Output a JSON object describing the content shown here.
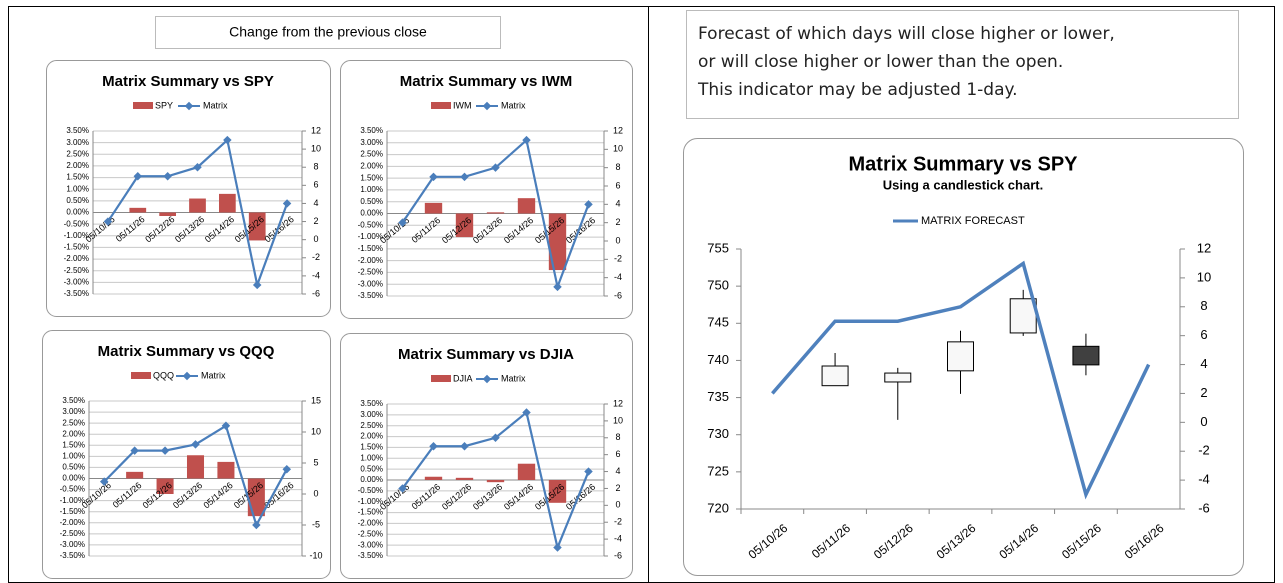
{
  "header": {
    "left_caption": "Change from the previous close",
    "right_note": [
      "Forecast of which days will close higher or lower,",
      "or will close higher or lower than the open.",
      "This indicator may be adjusted 1-day."
    ]
  },
  "chart_data": [
    {
      "type": "bar",
      "title": "Matrix Summary vs SPY",
      "categories": [
        "05/10/26",
        "05/11/26",
        "05/12/26",
        "05/13/26",
        "05/14/26",
        "05/15/26",
        "05/16/26"
      ],
      "series": [
        {
          "name": "SPY",
          "color": "#c0504d",
          "values": [
            null,
            0.2,
            -0.15,
            0.6,
            0.8,
            -1.2,
            null
          ]
        },
        {
          "name": "Matrix",
          "color": "#4a7ebb",
          "values": [
            2,
            7,
            7,
            8,
            11,
            -5,
            4
          ],
          "axis": "y2"
        }
      ],
      "ylim": [
        -3.5,
        3.5
      ],
      "yticks": [
        {
          "value": -3.5,
          "label": "-3.50%"
        },
        {
          "value": -3,
          "label": "-3.00%"
        },
        {
          "value": -2.5,
          "label": "-2.50%"
        },
        {
          "value": -2,
          "label": "-2.00%"
        },
        {
          "value": -1.5,
          "label": "-1.50%"
        },
        {
          "value": -1,
          "label": "-1.00%"
        },
        {
          "value": -0.5,
          "label": "-0.50%"
        },
        {
          "value": 0,
          "label": "0.00%"
        },
        {
          "value": 0.5,
          "label": "0.50%"
        },
        {
          "value": 1,
          "label": "1.00%"
        },
        {
          "value": 1.5,
          "label": "1.50%"
        },
        {
          "value": 2,
          "label": "2.00%"
        },
        {
          "value": 2.5,
          "label": "2.50%"
        },
        {
          "value": 3,
          "label": "3.00%"
        },
        {
          "value": 3.5,
          "label": "3.50%"
        }
      ],
      "y2lim": [
        -6,
        12
      ],
      "y2ticks": [
        -6,
        -4,
        -2,
        0,
        2,
        4,
        6,
        8,
        10,
        12
      ],
      "grid": true
    },
    {
      "type": "bar",
      "title": "Matrix Summary vs IWM",
      "categories": [
        "05/10/26",
        "05/11/26",
        "05/12/26",
        "05/13/26",
        "05/14/26",
        "05/15/26",
        "05/16/26"
      ],
      "series": [
        {
          "name": "IWM",
          "color": "#c0504d",
          "values": [
            null,
            0.45,
            -1.0,
            0.05,
            0.65,
            -2.4,
            null
          ]
        },
        {
          "name": "Matrix",
          "color": "#4a7ebb",
          "values": [
            2,
            7,
            7,
            8,
            11,
            -5,
            4
          ],
          "axis": "y2"
        }
      ],
      "ylim": [
        -3.5,
        3.5
      ],
      "yticks": [
        {
          "value": -3.5,
          "label": "-3.50%"
        },
        {
          "value": -3,
          "label": "-3.00%"
        },
        {
          "value": -2.5,
          "label": "-2.50%"
        },
        {
          "value": -2,
          "label": "-2.00%"
        },
        {
          "value": -1.5,
          "label": "-1.50%"
        },
        {
          "value": -1,
          "label": "-1.00%"
        },
        {
          "value": -0.5,
          "label": "-0.50%"
        },
        {
          "value": 0,
          "label": "0.00%"
        },
        {
          "value": 0.5,
          "label": "0.50%"
        },
        {
          "value": 1,
          "label": "1.00%"
        },
        {
          "value": 1.5,
          "label": "1.50%"
        },
        {
          "value": 2,
          "label": "2.00%"
        },
        {
          "value": 2.5,
          "label": "2.50%"
        },
        {
          "value": 3,
          "label": "3.00%"
        },
        {
          "value": 3.5,
          "label": "3.50%"
        }
      ],
      "y2lim": [
        -6,
        12
      ],
      "y2ticks": [
        -6,
        -4,
        -2,
        0,
        2,
        4,
        6,
        8,
        10,
        12
      ],
      "grid": true
    },
    {
      "type": "bar",
      "title": "Matrix Summary vs QQQ",
      "categories": [
        "05/10/26",
        "05/11/26",
        "05/12/26",
        "05/13/26",
        "05/14/26",
        "05/15/26",
        "05/16/26"
      ],
      "series": [
        {
          "name": "QQQ",
          "color": "#c0504d",
          "values": [
            null,
            0.3,
            -0.7,
            1.05,
            0.75,
            -1.7,
            null
          ]
        },
        {
          "name": "Matrix",
          "color": "#4a7ebb",
          "values": [
            2,
            7,
            7,
            8,
            11,
            -5,
            4
          ],
          "axis": "y2"
        }
      ],
      "ylim": [
        -3.5,
        3.5
      ],
      "yticks": [
        {
          "value": -3.5,
          "label": "-3.50%"
        },
        {
          "value": -3,
          "label": "-3.00%"
        },
        {
          "value": -2.5,
          "label": "-2.50%"
        },
        {
          "value": -2,
          "label": "-2.00%"
        },
        {
          "value": -1.5,
          "label": "-1.50%"
        },
        {
          "value": -1,
          "label": "-1.00%"
        },
        {
          "value": -0.5,
          "label": "-0.50%"
        },
        {
          "value": 0,
          "label": "0.00%"
        },
        {
          "value": 0.5,
          "label": "0.50%"
        },
        {
          "value": 1,
          "label": "1.00%"
        },
        {
          "value": 1.5,
          "label": "1.50%"
        },
        {
          "value": 2,
          "label": "2.00%"
        },
        {
          "value": 2.5,
          "label": "2.50%"
        },
        {
          "value": 3,
          "label": "3.00%"
        },
        {
          "value": 3.5,
          "label": "3.50%"
        }
      ],
      "y2lim": [
        -10,
        15
      ],
      "y2ticks": [
        -10,
        -5,
        0,
        5,
        10,
        15
      ],
      "grid": true
    },
    {
      "type": "bar",
      "title": "Matrix Summary vs DJIA",
      "categories": [
        "05/10/26",
        "05/11/26",
        "05/12/26",
        "05/13/26",
        "05/14/26",
        "05/15/26",
        "05/16/26"
      ],
      "series": [
        {
          "name": "DJIA",
          "color": "#c0504d",
          "values": [
            null,
            0.15,
            0.1,
            -0.1,
            0.75,
            -1.05,
            null
          ]
        },
        {
          "name": "Matrix",
          "color": "#4a7ebb",
          "values": [
            2,
            7,
            7,
            8,
            11,
            -5,
            4
          ],
          "axis": "y2"
        }
      ],
      "ylim": [
        -3.5,
        3.5
      ],
      "yticks": [
        {
          "value": -3.5,
          "label": "-3.50%"
        },
        {
          "value": -3,
          "label": "-3.00%"
        },
        {
          "value": -2.5,
          "label": "-2.50%"
        },
        {
          "value": -2,
          "label": "-2.00%"
        },
        {
          "value": -1.5,
          "label": "-1.50%"
        },
        {
          "value": -1,
          "label": "-1.00%"
        },
        {
          "value": -0.5,
          "label": "-0.50%"
        },
        {
          "value": 0,
          "label": "0.00%"
        },
        {
          "value": 0.5,
          "label": "0.50%"
        },
        {
          "value": 1,
          "label": "1.00%"
        },
        {
          "value": 1.5,
          "label": "1.50%"
        },
        {
          "value": 2,
          "label": "2.00%"
        },
        {
          "value": 2.5,
          "label": "2.50%"
        },
        {
          "value": 3,
          "label": "3.00%"
        },
        {
          "value": 3.5,
          "label": "3.50%"
        }
      ],
      "y2lim": [
        -6,
        12
      ],
      "y2ticks": [
        -6,
        -4,
        -2,
        0,
        2,
        4,
        6,
        8,
        10,
        12
      ],
      "grid": true
    },
    {
      "type": "candlestick",
      "title": "Matrix Summary vs SPY",
      "subtitle": "Using a candlestick chart.",
      "categories": [
        "05/10/26",
        "05/11/26",
        "05/12/26",
        "05/13/26",
        "05/14/26",
        "05/15/26",
        "05/16/26"
      ],
      "candles": {
        "open": [
          null,
          736.6,
          737.1,
          738.6,
          743.7,
          741.9,
          null
        ],
        "high": [
          null,
          741.0,
          739.0,
          744.0,
          749.5,
          743.6,
          null
        ],
        "low": [
          null,
          736.6,
          732.0,
          735.5,
          743.3,
          738.0,
          null
        ],
        "close": [
          null,
          739.25,
          738.3,
          742.5,
          748.3,
          739.4,
          null
        ],
        "up_color": "#f8f8f8",
        "down_color": "#404040"
      },
      "series": [
        {
          "name": "MATRIX FORECAST",
          "color": "#4f81bd",
          "values": [
            2,
            7,
            7,
            8,
            11,
            -5,
            4
          ],
          "axis": "y2"
        }
      ],
      "ylim": [
        720,
        755
      ],
      "yticks": [
        720,
        725,
        730,
        735,
        740,
        745,
        750,
        755
      ],
      "y2lim": [
        -6,
        12
      ],
      "y2ticks": [
        -6,
        -4,
        -2,
        0,
        2,
        4,
        6,
        8,
        10,
        12
      ]
    }
  ]
}
